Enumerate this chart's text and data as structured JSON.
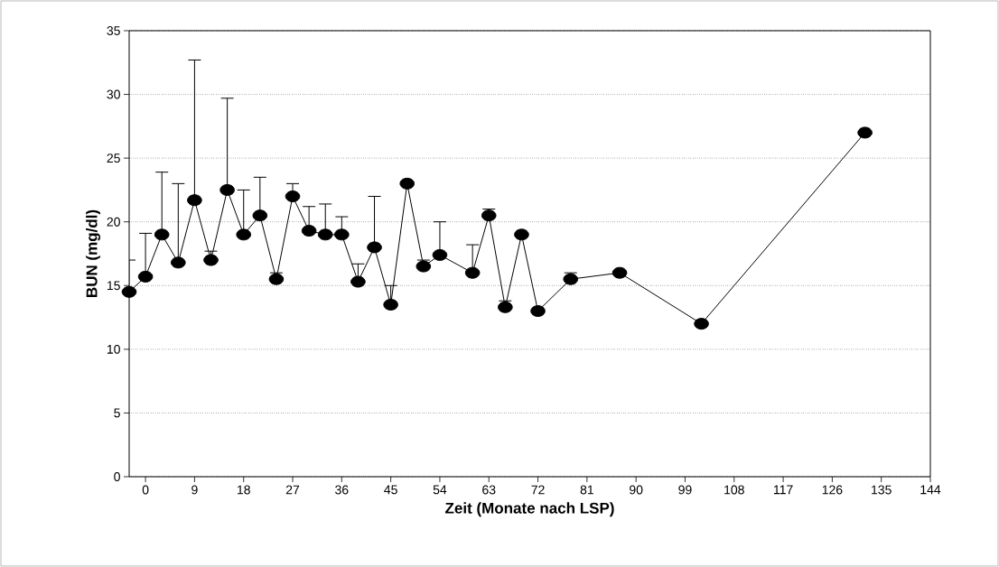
{
  "chart_data": {
    "type": "line",
    "xlabel": "Zeit (Monate nach LSP)",
    "ylabel": "BUN (mg/dl)",
    "x": [
      -3,
      0,
      3,
      6,
      9,
      12,
      15,
      18,
      21,
      24,
      27,
      30,
      33,
      36,
      39,
      42,
      45,
      48,
      51,
      54,
      60,
      63,
      66,
      69,
      72,
      78,
      87,
      102,
      132
    ],
    "values": [
      14.5,
      15.7,
      19.0,
      16.8,
      21.7,
      17.0,
      22.5,
      19.0,
      20.5,
      15.5,
      22.0,
      19.3,
      19.0,
      19.0,
      15.3,
      18.0,
      13.5,
      23.0,
      16.5,
      17.4,
      16.0,
      20.5,
      13.3,
      19.0,
      13.0,
      15.5,
      16.0,
      12.0,
      27.0
    ],
    "errors": [
      [
        14.5,
        17.0
      ],
      [
        15.7,
        19.1
      ],
      [
        19.0,
        23.9
      ],
      [
        16.8,
        23.0
      ],
      [
        21.7,
        32.7
      ],
      [
        17.0,
        17.7
      ],
      [
        22.5,
        29.7
      ],
      [
        19.0,
        22.5
      ],
      [
        20.5,
        23.5
      ],
      [
        15.5,
        16.0
      ],
      [
        22.0,
        23.0
      ],
      [
        19.3,
        21.2
      ],
      [
        19.0,
        21.4
      ],
      [
        19.0,
        20.4
      ],
      [
        15.3,
        16.7
      ],
      [
        18.0,
        22.0
      ],
      [
        13.5,
        15.0
      ],
      null,
      [
        16.5,
        17.0
      ],
      [
        17.4,
        20.0
      ],
      [
        16.0,
        18.2
      ],
      [
        20.5,
        21.0
      ],
      [
        13.3,
        13.8
      ],
      null,
      null,
      [
        15.5,
        16.0
      ],
      null,
      null,
      null
    ],
    "color": "#000000",
    "marker": "circle",
    "line_style": "solid",
    "grid": "y",
    "xlim": [
      -3,
      144
    ],
    "xticks": [
      0,
      9,
      18,
      27,
      36,
      45,
      54,
      63,
      72,
      81,
      90,
      99,
      108,
      117,
      126,
      135,
      144
    ],
    "ylim": [
      0,
      35
    ],
    "yticks": [
      0,
      5,
      10,
      15,
      20,
      25,
      30,
      35
    ]
  }
}
